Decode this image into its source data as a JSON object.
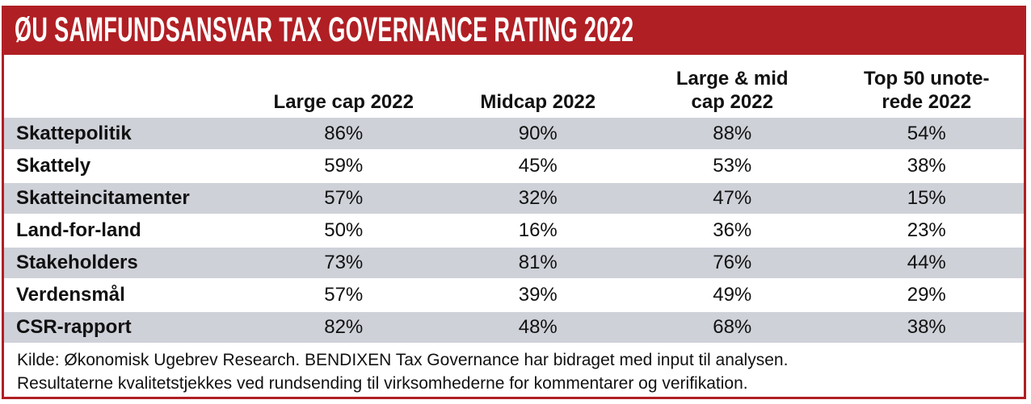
{
  "title": "ØU SAMFUNDSANSVAR TAX GOVERNANCE RATING 2022",
  "colors": {
    "accent_red": "#B01F24",
    "row_gray": "#CED1D8",
    "title_text": "#FFFFFF"
  },
  "table": {
    "headers": [
      {
        "lines": [
          ""
        ]
      },
      {
        "lines": [
          "Large cap 2022"
        ]
      },
      {
        "lines": [
          "Midcap 2022"
        ]
      },
      {
        "lines": [
          "Large & mid",
          "cap 2022"
        ]
      },
      {
        "lines": [
          "Top 50 unote-",
          "rede 2022"
        ]
      }
    ],
    "rows": [
      {
        "label": "Skattepolitik",
        "values": [
          "86%",
          "90%",
          "88%",
          "54%"
        ]
      },
      {
        "label": "Skattely",
        "values": [
          "59%",
          "45%",
          "53%",
          "38%"
        ]
      },
      {
        "label": "Skatteincitamenter",
        "values": [
          "57%",
          "32%",
          "47%",
          "15%"
        ]
      },
      {
        "label": "Land-for-land",
        "values": [
          "50%",
          "16%",
          "36%",
          "23%"
        ]
      },
      {
        "label": "Stakeholders",
        "values": [
          "73%",
          "81%",
          "76%",
          "44%"
        ]
      },
      {
        "label": "Verdensmål",
        "values": [
          "57%",
          "39%",
          "49%",
          "29%"
        ]
      },
      {
        "label": "CSR-rapport",
        "values": [
          "82%",
          "48%",
          "68%",
          "38%"
        ]
      }
    ]
  },
  "footer": {
    "line1": "Kilde: Økonomisk Ugebrev Research. BENDIXEN Tax Governance har bidraget med input til analysen.",
    "line2": "Resultaterne kvalitetstjekkes ved rundsending til virksomhederne for kommentarer og verifikation."
  },
  "chart_data": {
    "type": "table",
    "title": "ØU SAMFUNDSANSVAR TAX GOVERNANCE RATING 2022",
    "categories": [
      "Skattepolitik",
      "Skattely",
      "Skatteincitamenter",
      "Land-for-land",
      "Stakeholders",
      "Verdensmål",
      "CSR-rapport"
    ],
    "series": [
      {
        "name": "Large cap 2022",
        "values": [
          86,
          59,
          57,
          50,
          73,
          57,
          82
        ]
      },
      {
        "name": "Midcap 2022",
        "values": [
          90,
          45,
          32,
          16,
          81,
          39,
          48
        ]
      },
      {
        "name": "Large & mid cap 2022",
        "values": [
          88,
          53,
          47,
          36,
          76,
          49,
          68
        ]
      },
      {
        "name": "Top 50 unoterede 2022",
        "values": [
          54,
          38,
          15,
          23,
          44,
          29,
          38
        ]
      }
    ],
    "unit": "%",
    "value_range": [
      0,
      100
    ],
    "source_note": "Kilde: Økonomisk Ugebrev Research. BENDIXEN Tax Governance har bidraget med input til analysen. Resultaterne kvalitetstjekkes ved rundsending til virksomhederne for kommentarer og verifikation."
  }
}
